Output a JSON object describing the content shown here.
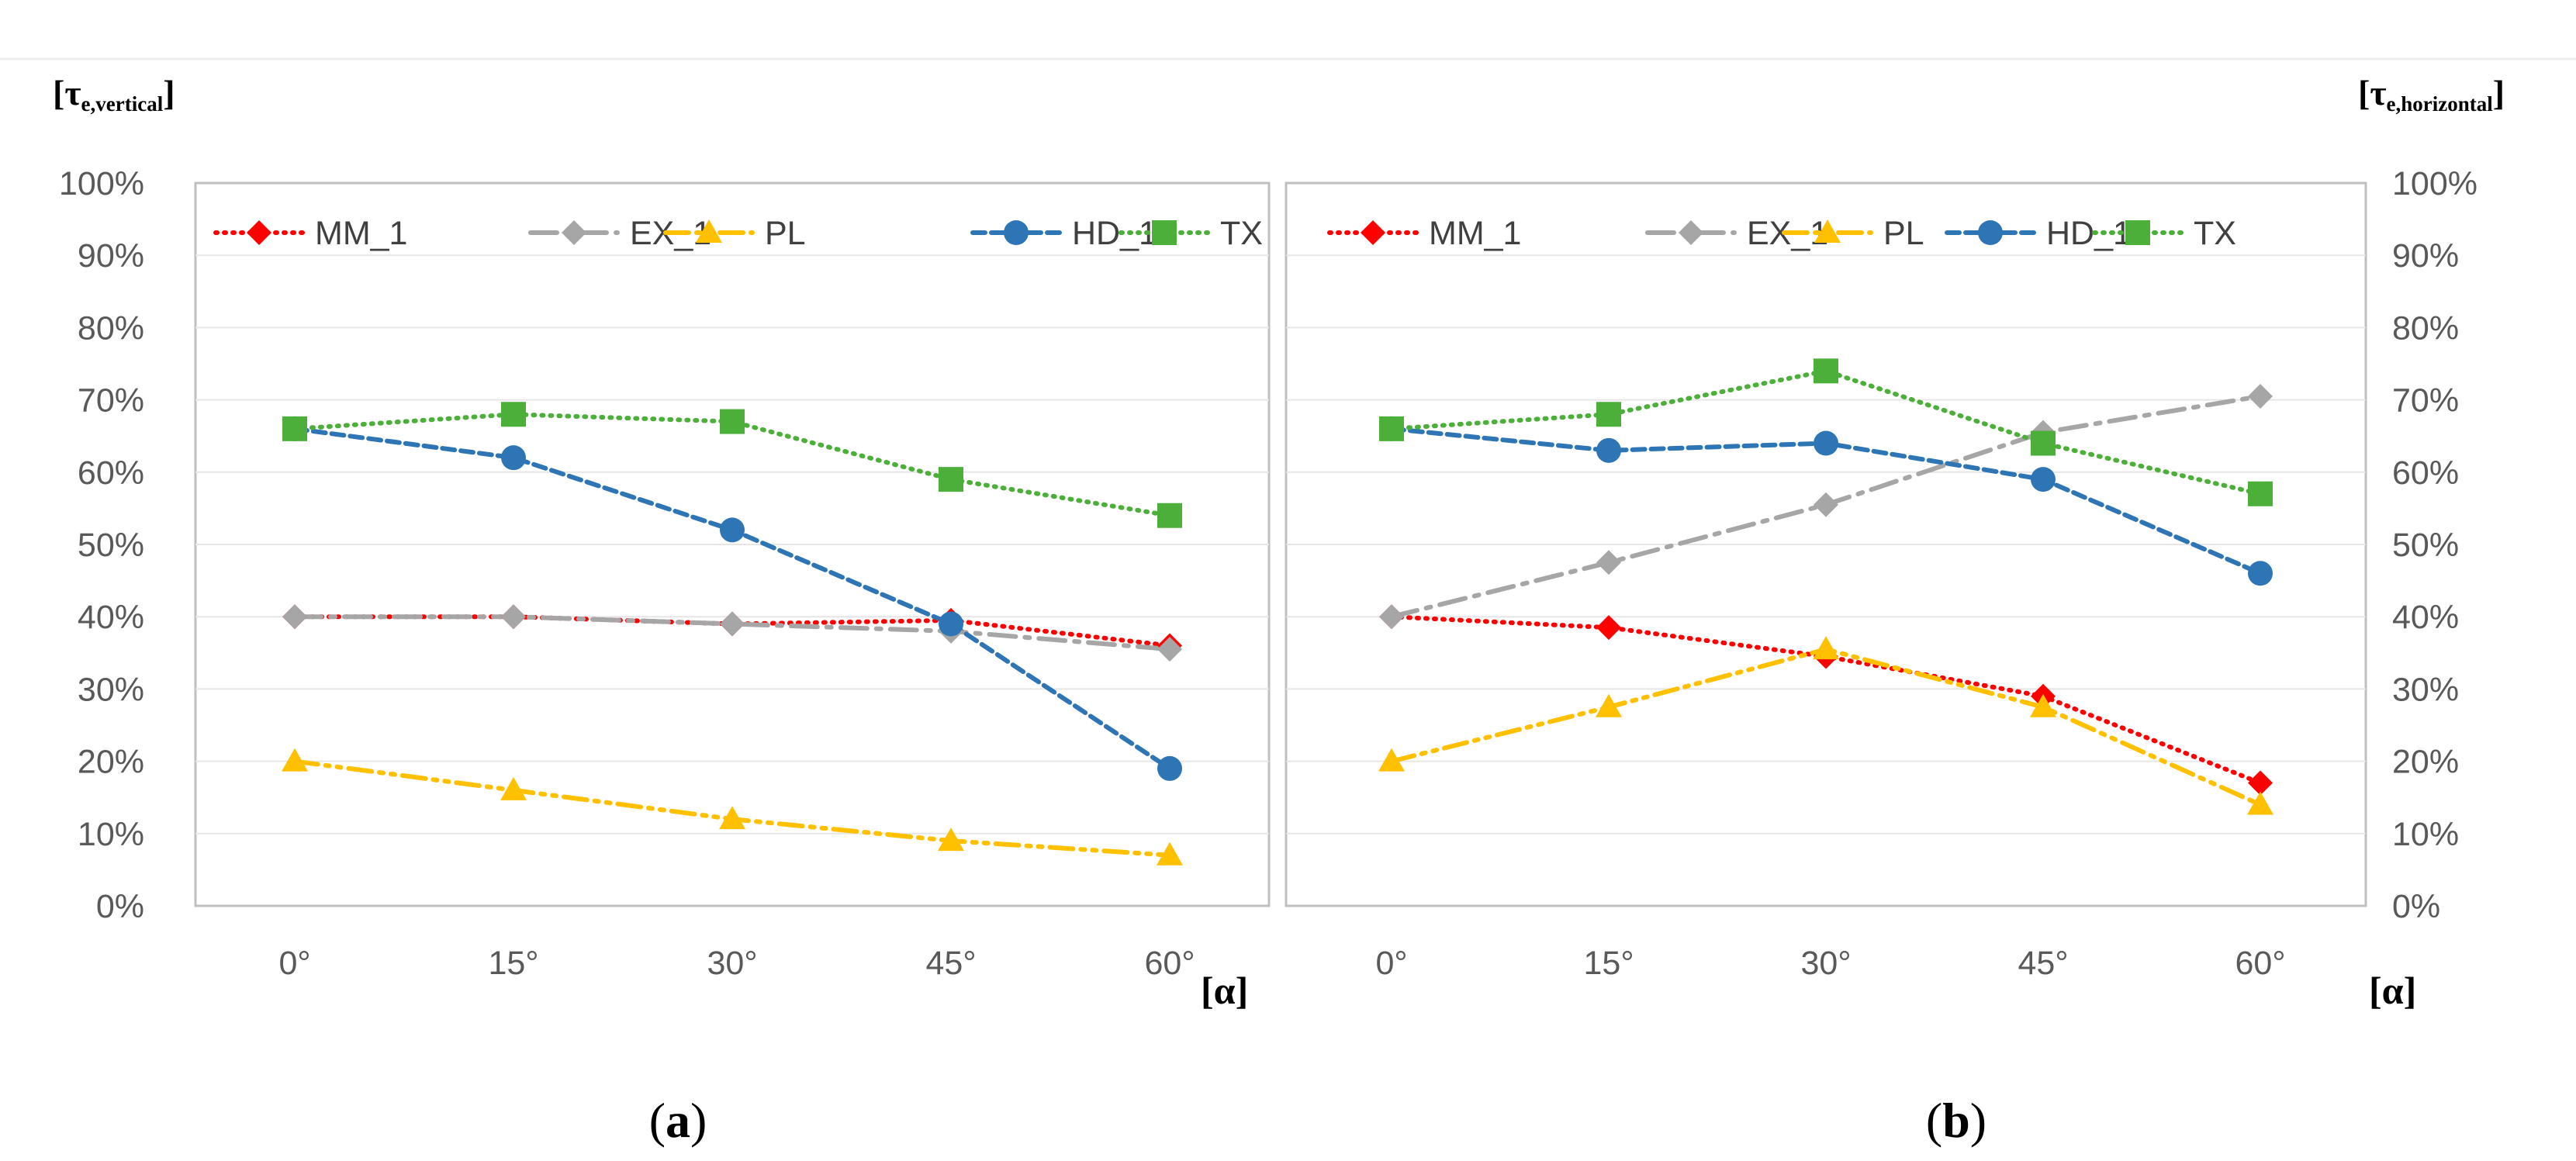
{
  "chart_data": [
    {
      "id": "a",
      "type": "line",
      "caption": "a",
      "y_axis_title": {
        "symbol": "τ",
        "subscript": "e,vertical"
      },
      "x_axis_title": "α",
      "categories": [
        "0°",
        "15°",
        "30°",
        "45°",
        "60°"
      ],
      "yticks": [
        "0%",
        "10%",
        "20%",
        "30%",
        "40%",
        "50%",
        "60%",
        "70%",
        "80%",
        "90%",
        "100%"
      ],
      "ylim": [
        0,
        100
      ],
      "y_side": "left",
      "grid": true,
      "legend_position": "top",
      "series": [
        {
          "name": "MM_1",
          "color": "#ff0000",
          "dash": "dot",
          "marker": "diamond",
          "values": [
            40,
            40,
            39,
            39.5,
            36
          ]
        },
        {
          "name": "EX_1",
          "color": "#a6a6a6",
          "dash": "dashdot-long",
          "marker": "diamond",
          "values": [
            40,
            40,
            39,
            38,
            35.5
          ]
        },
        {
          "name": "PL",
          "color": "#ffc000",
          "dash": "dashdotdot",
          "marker": "triangle",
          "values": [
            20,
            16,
            12,
            9,
            7
          ]
        },
        {
          "name": "HD_1",
          "color": "#2e75b6",
          "dash": "dash",
          "marker": "circle",
          "values": [
            66,
            62,
            52,
            39,
            19
          ]
        },
        {
          "name": "TX",
          "color": "#4caf3a",
          "dash": "dot",
          "marker": "square",
          "values": [
            66,
            68,
            67,
            59,
            54
          ]
        }
      ]
    },
    {
      "id": "b",
      "type": "line",
      "caption": "b",
      "y_axis_title": {
        "symbol": "τ",
        "subscript": "e,horizontal"
      },
      "x_axis_title": "α",
      "categories": [
        "0°",
        "15°",
        "30°",
        "45°",
        "60°"
      ],
      "yticks": [
        "0%",
        "10%",
        "20%",
        "30%",
        "40%",
        "50%",
        "60%",
        "70%",
        "80%",
        "90%",
        "100%"
      ],
      "ylim": [
        0,
        100
      ],
      "y_side": "right",
      "grid": true,
      "legend_position": "top",
      "series": [
        {
          "name": "MM_1",
          "color": "#ff0000",
          "dash": "dot",
          "marker": "diamond",
          "values": [
            40,
            38.5,
            34.5,
            29,
            17
          ]
        },
        {
          "name": "EX_1",
          "color": "#a6a6a6",
          "dash": "dashdot-long",
          "marker": "diamond",
          "values": [
            40,
            47.5,
            55.5,
            65.5,
            70.5
          ]
        },
        {
          "name": "PL",
          "color": "#ffc000",
          "dash": "dashdotdot",
          "marker": "triangle",
          "values": [
            20,
            27.5,
            35.5,
            27.5,
            14
          ]
        },
        {
          "name": "HD_1",
          "color": "#2e75b6",
          "dash": "dash",
          "marker": "circle",
          "values": [
            66,
            63,
            64,
            59,
            46
          ]
        },
        {
          "name": "TX",
          "color": "#4caf3a",
          "dash": "dot",
          "marker": "square",
          "values": [
            66,
            68,
            74,
            64,
            57
          ]
        }
      ]
    }
  ]
}
